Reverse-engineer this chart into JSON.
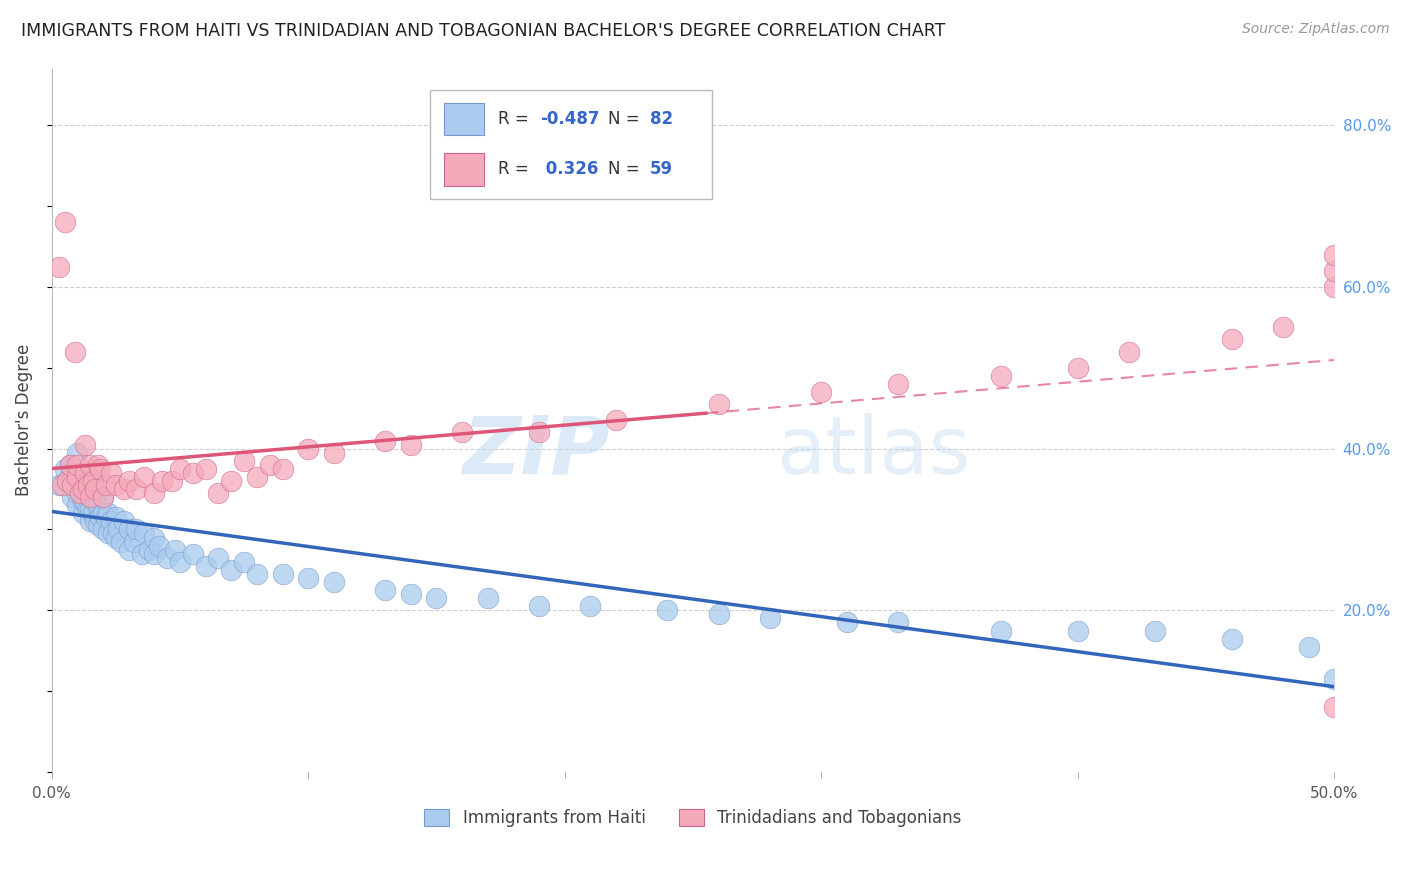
{
  "title": "IMMIGRANTS FROM HAITI VS TRINIDADIAN AND TOBAGONIAN BACHELOR'S DEGREE CORRELATION CHART",
  "source": "Source: ZipAtlas.com",
  "ylabel": "Bachelor's Degree",
  "xmin": 0.0,
  "xmax": 0.5,
  "ymin": 0.0,
  "ymax": 0.87,
  "yticks": [
    0.2,
    0.4,
    0.6,
    0.8
  ],
  "ytick_labels": [
    "20.0%",
    "40.0%",
    "60.0%",
    "80.0%"
  ],
  "xticks": [
    0.0,
    0.1,
    0.2,
    0.3,
    0.4,
    0.5
  ],
  "xtick_labels": [
    "0.0%",
    "",
    "",
    "",
    "",
    "50.0%"
  ],
  "haiti_fill_color": "#aaccee",
  "haiti_edge_color": "#7799cc",
  "trinidad_fill_color": "#f5aabb",
  "trinidad_edge_color": "#cc6688",
  "haiti_line_color": "#3366bb",
  "trinidad_line_color": "#dd5577",
  "haiti_R": -0.487,
  "haiti_N": 82,
  "trinidad_R": 0.326,
  "trinidad_N": 59,
  "background_color": "#ffffff",
  "grid_color": "#bbbbbb",
  "watermark_zip": "ZIP",
  "watermark_atlas": "atlas",
  "haiti_scatter_x": [
    0.003,
    0.005,
    0.006,
    0.007,
    0.008,
    0.008,
    0.009,
    0.01,
    0.01,
    0.01,
    0.01,
    0.01,
    0.012,
    0.012,
    0.012,
    0.013,
    0.013,
    0.014,
    0.014,
    0.015,
    0.015,
    0.015,
    0.015,
    0.016,
    0.016,
    0.017,
    0.017,
    0.018,
    0.018,
    0.019,
    0.02,
    0.02,
    0.02,
    0.021,
    0.022,
    0.022,
    0.023,
    0.024,
    0.025,
    0.025,
    0.026,
    0.027,
    0.028,
    0.03,
    0.03,
    0.032,
    0.033,
    0.035,
    0.036,
    0.038,
    0.04,
    0.04,
    0.042,
    0.045,
    0.048,
    0.05,
    0.055,
    0.06,
    0.065,
    0.07,
    0.075,
    0.08,
    0.09,
    0.1,
    0.11,
    0.13,
    0.14,
    0.15,
    0.17,
    0.19,
    0.21,
    0.24,
    0.26,
    0.28,
    0.31,
    0.33,
    0.37,
    0.4,
    0.43,
    0.46,
    0.49,
    0.5
  ],
  "haiti_scatter_y": [
    0.355,
    0.375,
    0.36,
    0.38,
    0.34,
    0.37,
    0.355,
    0.33,
    0.345,
    0.36,
    0.375,
    0.395,
    0.32,
    0.335,
    0.355,
    0.335,
    0.36,
    0.325,
    0.35,
    0.31,
    0.325,
    0.34,
    0.365,
    0.32,
    0.345,
    0.31,
    0.335,
    0.305,
    0.33,
    0.315,
    0.3,
    0.32,
    0.34,
    0.315,
    0.295,
    0.32,
    0.31,
    0.295,
    0.29,
    0.315,
    0.3,
    0.285,
    0.31,
    0.275,
    0.3,
    0.285,
    0.3,
    0.27,
    0.295,
    0.275,
    0.29,
    0.27,
    0.28,
    0.265,
    0.275,
    0.26,
    0.27,
    0.255,
    0.265,
    0.25,
    0.26,
    0.245,
    0.245,
    0.24,
    0.235,
    0.225,
    0.22,
    0.215,
    0.215,
    0.205,
    0.205,
    0.2,
    0.195,
    0.19,
    0.185,
    0.185,
    0.175,
    0.175,
    0.175,
    0.165,
    0.155,
    0.115
  ],
  "trinidad_scatter_x": [
    0.003,
    0.004,
    0.005,
    0.006,
    0.007,
    0.008,
    0.009,
    0.01,
    0.01,
    0.011,
    0.012,
    0.013,
    0.013,
    0.014,
    0.015,
    0.015,
    0.016,
    0.017,
    0.018,
    0.019,
    0.02,
    0.021,
    0.023,
    0.025,
    0.028,
    0.03,
    0.033,
    0.036,
    0.04,
    0.043,
    0.047,
    0.05,
    0.055,
    0.06,
    0.065,
    0.07,
    0.075,
    0.08,
    0.085,
    0.09,
    0.1,
    0.11,
    0.13,
    0.14,
    0.16,
    0.19,
    0.22,
    0.26,
    0.3,
    0.33,
    0.37,
    0.4,
    0.42,
    0.46,
    0.48,
    0.5,
    0.5,
    0.5,
    0.5
  ],
  "trinidad_scatter_y": [
    0.625,
    0.355,
    0.68,
    0.36,
    0.38,
    0.355,
    0.52,
    0.365,
    0.38,
    0.345,
    0.35,
    0.37,
    0.405,
    0.355,
    0.34,
    0.38,
    0.36,
    0.35,
    0.38,
    0.375,
    0.34,
    0.355,
    0.37,
    0.355,
    0.35,
    0.36,
    0.35,
    0.365,
    0.345,
    0.36,
    0.36,
    0.375,
    0.37,
    0.375,
    0.345,
    0.36,
    0.385,
    0.365,
    0.38,
    0.375,
    0.4,
    0.395,
    0.41,
    0.405,
    0.42,
    0.42,
    0.435,
    0.455,
    0.47,
    0.48,
    0.49,
    0.5,
    0.52,
    0.535,
    0.55,
    0.6,
    0.62,
    0.64,
    0.08
  ]
}
